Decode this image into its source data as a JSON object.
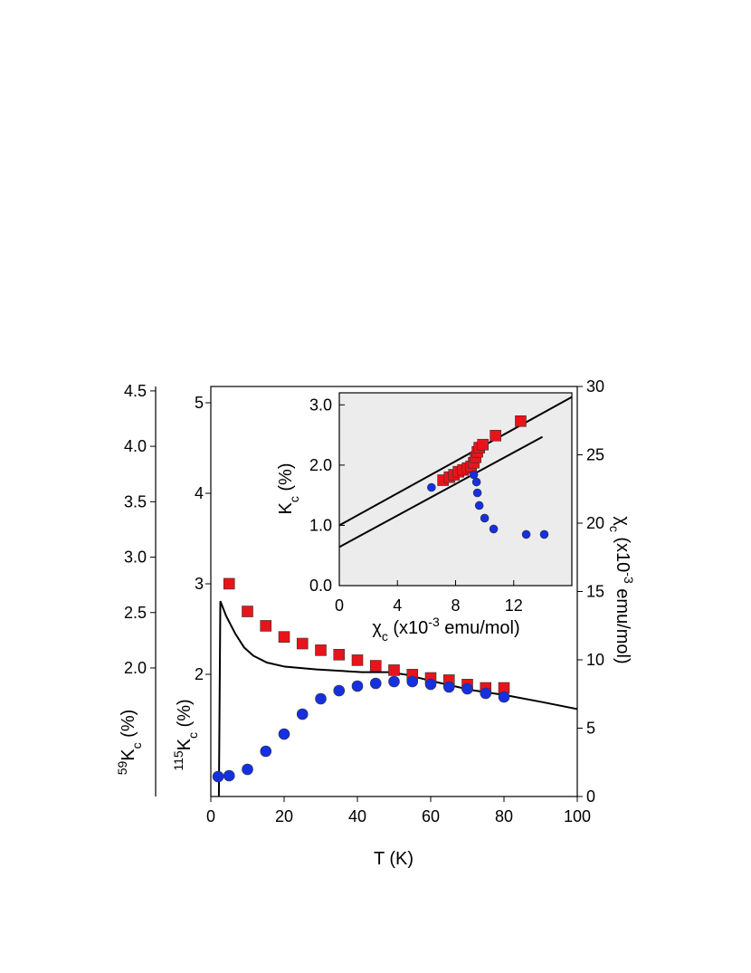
{
  "chart_data": [
    {
      "type": "scatter",
      "xlabel": [
        {
          "text": "T (K)"
        }
      ],
      "xlim": [
        0,
        100
      ],
      "xticks": [
        0,
        20,
        40,
        60,
        80,
        100
      ],
      "ylabel": [
        {
          "text": "115",
          "style": "sup"
        },
        {
          "text": "K"
        },
        {
          "text": "c",
          "style": "sub"
        },
        {
          "text": " (%)"
        }
      ],
      "ylim": [
        0.65,
        5.18
      ],
      "yticks": [
        2,
        3,
        4,
        5
      ],
      "y2label": [
        {
          "text": "χ"
        },
        {
          "text": "c",
          "style": "sub"
        },
        {
          "text": " (x10"
        },
        {
          "text": "-3",
          "style": "sup"
        },
        {
          "text": " emu/mol)"
        }
      ],
      "y2lim": [
        0,
        30
      ],
      "y2ticks": [
        0,
        5,
        10,
        15,
        20,
        25,
        30
      ],
      "y3label": [
        {
          "text": "59",
          "style": "sup"
        },
        {
          "text": "K"
        },
        {
          "text": "c",
          "style": "sub"
        },
        {
          "text": " (%)"
        }
      ],
      "y3lim": [
        0.84,
        4.54
      ],
      "y3ticks": [
        {
          "value": 2,
          "label": "2.0"
        },
        2.5,
        {
          "value": 3,
          "label": "3.0"
        },
        3.5,
        {
          "value": 4,
          "label": "4.0"
        },
        4.5
      ],
      "series": [
        {
          "marker": "line",
          "color": "#000000",
          "axis": "y2",
          "x": [
            2.2,
            2.6,
            4.2,
            6.7,
            9.1,
            11.6,
            15.3,
            20.2,
            28.9,
            41.2,
            48.6,
            53.6,
            61,
            70.9,
            80.7,
            90.6,
            100
          ],
          "values": [
            0,
            14.3,
            13.2,
            11.9,
            10.9,
            10.3,
            9.8,
            9.5,
            9.3,
            9.1,
            9.1,
            8.9,
            8.4,
            7.8,
            7.4,
            6.9,
            6.4
          ]
        },
        {
          "marker": "square",
          "color": "#e8141b",
          "axis": "y3",
          "x": [
            5,
            10,
            15,
            20,
            25,
            30,
            35,
            40,
            45,
            50,
            55,
            60,
            65,
            70,
            75,
            80
          ],
          "values": [
            2.76,
            2.51,
            2.38,
            2.28,
            2.22,
            2.16,
            2.12,
            2.07,
            2.02,
            1.98,
            1.94,
            1.91,
            1.89,
            1.85,
            1.82,
            1.82
          ]
        },
        {
          "marker": "circle",
          "color": "#1530e0",
          "axis": "y",
          "x": [
            2,
            5,
            10,
            15,
            20,
            25,
            30,
            35,
            40,
            45,
            50,
            55,
            60,
            65,
            70,
            75,
            80
          ],
          "values": [
            0.87,
            0.88,
            0.95,
            1.15,
            1.34,
            1.56,
            1.73,
            1.82,
            1.87,
            1.9,
            1.92,
            1.92,
            1.89,
            1.86,
            1.84,
            1.79,
            1.75
          ]
        }
      ]
    },
    {
      "type": "scatter",
      "xlabel": [
        {
          "text": "χ"
        },
        {
          "text": "c",
          "style": "sub"
        },
        {
          "text": " (x10"
        },
        {
          "text": "-3",
          "style": "sup"
        },
        {
          "text": " emu/mol)"
        }
      ],
      "xlim": [
        0,
        16
      ],
      "xticks": [
        0,
        4,
        8,
        12
      ],
      "ylabel": [
        {
          "text": "K"
        },
        {
          "text": "c",
          "style": "sub"
        },
        {
          "text": " (%)"
        }
      ],
      "ylim": [
        0,
        3.2
      ],
      "yticks": [
        {
          "value": 0,
          "label": "0.0"
        },
        {
          "value": 1,
          "label": "1.0"
        },
        {
          "value": 2,
          "label": "2.0"
        },
        {
          "value": 3,
          "label": "3.0"
        }
      ],
      "background": "#ececec",
      "series": [
        {
          "marker": "line",
          "color": "#000000",
          "axis": "y",
          "x": [
            0,
            16
          ],
          "values": [
            1.0,
            3.13
          ]
        },
        {
          "marker": "line",
          "color": "#000000",
          "axis": "y",
          "x": [
            0,
            13.98
          ],
          "values": [
            0.64,
            2.47
          ]
        },
        {
          "marker": "square",
          "color": "#e8141b",
          "axis": "y",
          "x": [
            7.14,
            7.58,
            7.89,
            8.2,
            8.51,
            8.82,
            9.07,
            9.25,
            9.38,
            9.5,
            9.63,
            9.88,
            10.75,
            12.48
          ],
          "values": [
            1.75,
            1.8,
            1.84,
            1.89,
            1.92,
            1.95,
            1.98,
            2.04,
            2.13,
            2.22,
            2.29,
            2.34,
            2.49,
            2.73
          ]
        },
        {
          "marker": "circle",
          "color": "#1530e0",
          "axis": "y",
          "x": [
            6.34,
            9.25,
            9.44,
            9.5,
            9.63,
            10.0,
            10.62,
            12.86,
            14.1
          ],
          "values": [
            1.63,
            1.84,
            1.72,
            1.54,
            1.33,
            1.12,
            0.94,
            0.85,
            0.85
          ]
        }
      ]
    }
  ]
}
